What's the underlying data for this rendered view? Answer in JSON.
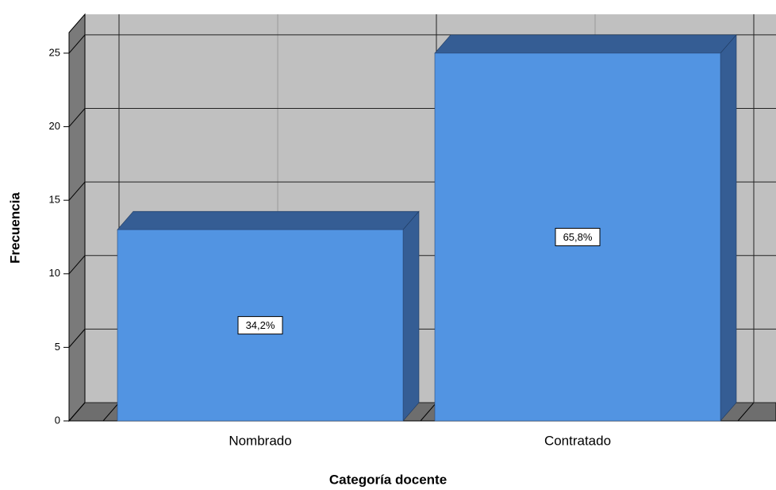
{
  "chart_data": {
    "type": "bar",
    "x_label": "Categoría docente",
    "y_label": "Frecuencia",
    "categories": [
      "Nombrado",
      "Contratado"
    ],
    "values": [
      13,
      25
    ],
    "percentages": [
      34.2,
      65.8
    ],
    "percentage_labels": [
      "34,2%",
      "65,8%"
    ],
    "color": "#5294e2",
    "ylim": [
      0,
      26.4
    ],
    "yticks": [
      0,
      5,
      10,
      15,
      20,
      25
    ],
    "grid": true
  }
}
